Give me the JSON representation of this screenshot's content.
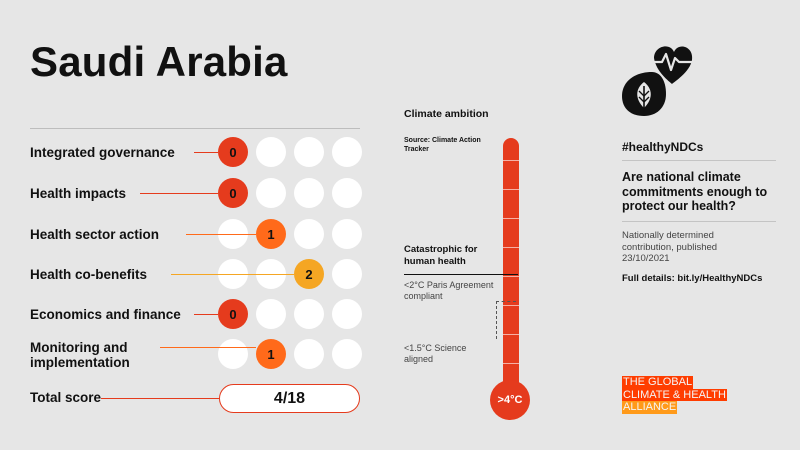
{
  "country": "Saudi Arabia",
  "colors": {
    "score0": "#e53b1d",
    "score1": "#ff6a1a",
    "score2": "#f5a623",
    "empty": "#ffffff",
    "thermometer": "#e53b1d",
    "background": "#e6e6e6"
  },
  "categories": [
    {
      "label": "Integrated governance",
      "score": 0
    },
    {
      "label": "Health impacts",
      "score": 0
    },
    {
      "label": "Health sector action",
      "score": 1
    },
    {
      "label": "Health co-benefits",
      "score": 2
    },
    {
      "label": "Economics and finance",
      "score": 0
    },
    {
      "label": "Monitoring and implementation",
      "score": 1
    }
  ],
  "max_score_per_category": 3,
  "total": {
    "label": "Total score",
    "value": "4/18"
  },
  "thermometer": {
    "title": "Climate ambition",
    "source": "Source: Climate Action Tracker",
    "level_text": ">4°C",
    "catastrophic": "Catastrophic for human health",
    "paris": "<2°C Paris Agreement compliant",
    "science": "<1.5°C Science aligned"
  },
  "side": {
    "icon": "heart-leaf-drop-icon",
    "hashtag": "#healthyNDCs",
    "question": "Are national climate commitments enough to protect our health?",
    "ndc_line1": "Nationally determined",
    "ndc_line2": "contribution, published",
    "ndc_date": "23/10/2021",
    "details": "Full details: bit.ly/HealthyNDCs"
  },
  "alliance": {
    "line1": "THE GLOBAL",
    "line2": "CLIMATE & HEALTH",
    "line3": "ALLIANCE"
  }
}
